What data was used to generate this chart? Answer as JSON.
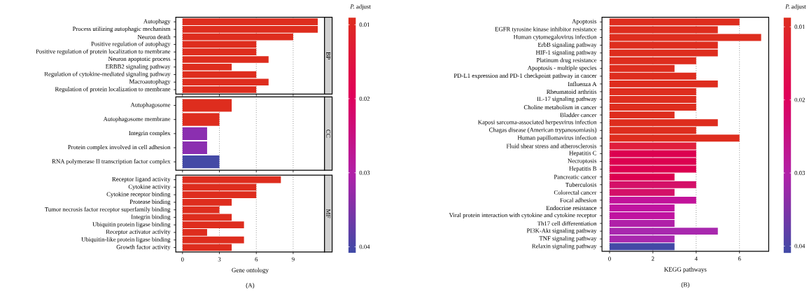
{
  "chart_data": [
    {
      "type": "bar",
      "orientation": "horizontal",
      "title": "BP",
      "categories": [
        "Autophagy",
        "Process utilizing autophagic mechanism",
        "Neuron death",
        "Positive regulation of autophagy",
        "Positive regulation of protein localization to membrane",
        "Neuron apoptotic process",
        "ERBB2 signaling pathway",
        "Regulation of cytokine-mediated signaling pathway",
        "Macroautophagy",
        "Regulation of protein localization to membrane"
      ],
      "values": [
        11,
        11,
        9,
        6,
        6,
        7,
        4,
        6,
        7,
        6
      ],
      "colors": [
        "#de2d1e",
        "#de2d1e",
        "#de2d1e",
        "#de2d1e",
        "#de2d1e",
        "#de2d1e",
        "#de2d1e",
        "#de2d1e",
        "#de2d1e",
        "#de2d1e"
      ],
      "xlim": [
        -0.55,
        11.55
      ],
      "xticks": [
        0,
        3,
        6,
        9
      ],
      "grid": "x",
      "tick_labels": "y",
      "clabel": "*P.* adjust",
      "clim": [
        0.009,
        0.0408
      ],
      "cticks": [
        0.01,
        0.02,
        0.03,
        0.04
      ]
    },
    {
      "type": "bar",
      "orientation": "horizontal",
      "title": "CC",
      "categories": [
        "Autophagosome",
        "Autophagosome membrane",
        "Integrin complex",
        "Protein complex involved in cell adhesion",
        "RNA polymerase II transcription factor complex"
      ],
      "values": [
        4,
        3,
        2,
        2,
        3
      ],
      "colors": [
        "#de2d1e",
        "#de2d1e",
        "#8b2fb0",
        "#8b2fb0",
        "#444aa6"
      ],
      "xlim": [
        -0.55,
        11.55
      ],
      "xticks": [
        0,
        3,
        6,
        9
      ],
      "grid": "x",
      "tick_labels": "y"
    },
    {
      "type": "bar",
      "orientation": "horizontal",
      "title": "MF",
      "categories": [
        "Receptor ligand activity",
        "Cytokine activity",
        "Cytokine receptor binding",
        "Protease binding",
        "Tumor necrosis factor receptor superfamily binding",
        "Integrin binding",
        "Ubiquitin protein ligase binding",
        "Receptor activator activity",
        "Ubiquitin-like protein ligase binding",
        "Growth factor activity"
      ],
      "values": [
        8,
        6,
        6,
        4,
        3,
        4,
        5,
        2,
        5,
        4
      ],
      "colors": [
        "#de2d1e",
        "#de2d1e",
        "#de2d1e",
        "#de2d1e",
        "#de2d1e",
        "#de2d1e",
        "#de2d1e",
        "#de2d1e",
        "#de2d1e",
        "#de2d1e"
      ],
      "xlim": [
        -0.55,
        11.55
      ],
      "xticks": [
        0,
        3,
        6,
        9
      ],
      "grid": "x",
      "xlabel": "Gene ontology",
      "annotations": [
        "(A)"
      ]
    },
    {
      "type": "bar",
      "orientation": "horizontal",
      "categories": [
        "Apoptosis",
        "EGFR tyrosine kinase inhibitor resistance",
        "Human cytomegalovirus infection",
        "ErbB signaling pathway",
        "HIF-1 signaling pathway",
        "Platinum drug resistance",
        "Apoptosis - multiple species",
        "PD-L1 expression and PD-1 checkpoint pathway in cancer",
        "Influenza A",
        "Rheumatoid arthritis",
        "IL-17 signaling pathway",
        "Choline metabolism in cancer",
        "Bladder cancer",
        "Kaposi sarcoma-associated herpesvirus infection",
        "Chagas disease (American trypanosomiasis)",
        "Human papillomavirus infection",
        "Fluid shear stress and atherosclerosis",
        "Hepatitis C",
        "Necroptosis",
        "Hepatitis B",
        "Pancreatic cancer",
        "Tuberculosis",
        "Colorectal cancer",
        "Focal adhesion",
        "Endocrine resistance",
        "Viral protein interaction with cytokine and cytokine receptor",
        "Th17 cell differentiation",
        "PI3K-Akt signaling pathway",
        "TNF signaling pathway",
        "Relaxin signaling pathway"
      ],
      "values": [
        6,
        5,
        7,
        5,
        5,
        4,
        3,
        4,
        5,
        4,
        4,
        4,
        3,
        5,
        4,
        6,
        4,
        4,
        4,
        4,
        3,
        4,
        3,
        4,
        3,
        3,
        3,
        5,
        3,
        3
      ],
      "colors": [
        "#de2d1e",
        "#de2d1e",
        "#de2d1e",
        "#de2d1e",
        "#de2d1e",
        "#de2d1e",
        "#de2d1e",
        "#de2d1e",
        "#de2d1e",
        "#de2d1e",
        "#de2d1e",
        "#de2d1e",
        "#de2d1e",
        "#de2d1e",
        "#de2d1e",
        "#de2d1e",
        "#e01e3c",
        "#dc0050",
        "#dc0050",
        "#dc0050",
        "#dc0050",
        "#d41068",
        "#d41068",
        "#c2139a",
        "#c014a0",
        "#c014a0",
        "#b020a8",
        "#a828ae",
        "#a828ae",
        "#4349a6"
      ],
      "xlim": [
        -0.35,
        7.35
      ],
      "xticks": [
        0,
        2,
        4,
        6
      ],
      "grid": "x",
      "xlabel": "KEGG pathways",
      "annotations": [
        "(B)"
      ],
      "clabel": "*P.* adjust",
      "clim": [
        0.0087,
        0.041
      ],
      "cticks": [
        0.01,
        0.02,
        0.03,
        0.04
      ]
    }
  ]
}
